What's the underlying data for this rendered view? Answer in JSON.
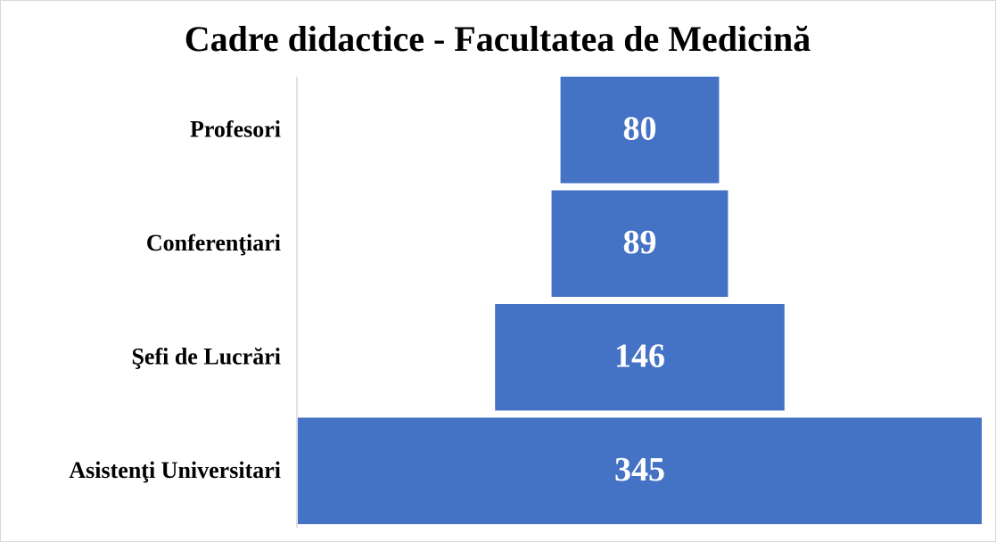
{
  "chart_data": {
    "type": "funnel",
    "title": "Cadre didactice - Facultatea de Medicină",
    "categories": [
      "Profesori",
      "Conferenţiari",
      "Şefi de Lucrări",
      "Asistenţi Universitari"
    ],
    "values": [
      80,
      89,
      146,
      345
    ],
    "color": "#4472c4"
  }
}
